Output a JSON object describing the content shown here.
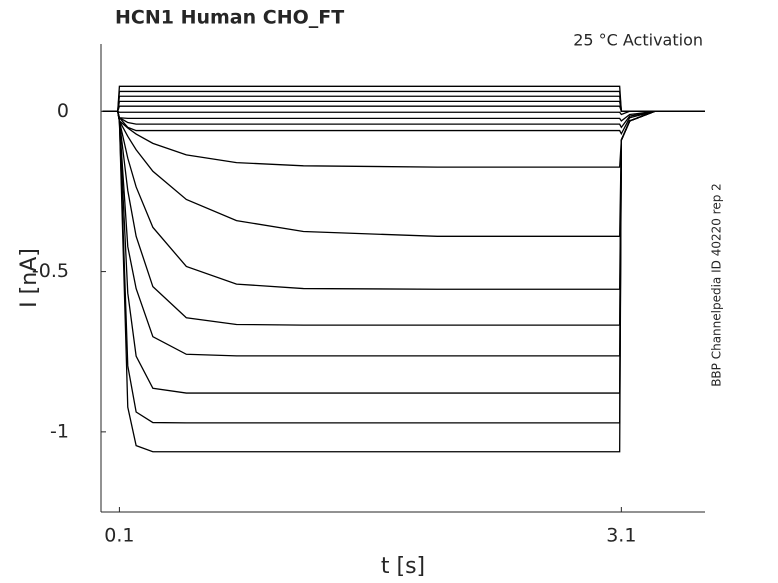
{
  "chart_data": {
    "type": "line",
    "title": "HCN1  Human  CHO_FT",
    "annotation": "25 °C  Activation",
    "side_note": "BBP Channelpedia ID 40220 rep 2",
    "xlabel": "t [s]",
    "ylabel": "I [nA]",
    "xlim": [
      -0.01,
      3.6
    ],
    "ylim": [
      -1.25,
      0.21
    ],
    "xticks": [
      0.1,
      3.1
    ],
    "yticks": [
      0,
      -0.5,
      -1
    ],
    "x": [
      0,
      0.09,
      0.1,
      0.15,
      0.2,
      0.3,
      0.5,
      0.8,
      1.2,
      2,
      3.09,
      3.1,
      3.15,
      3.3,
      3.6
    ],
    "series": [
      {
        "color": "#000000",
        "values": [
          0,
          0,
          0.078,
          0.078,
          0.078,
          0.078,
          0.078,
          0.078,
          0.078,
          0.078,
          0.078,
          0,
          0,
          0,
          0
        ]
      },
      {
        "color": "#000000",
        "values": [
          0,
          0,
          0.062,
          0.062,
          0.062,
          0.062,
          0.062,
          0.062,
          0.062,
          0.062,
          0.062,
          0,
          0,
          0,
          0
        ]
      },
      {
        "color": "#000000",
        "values": [
          0,
          0,
          0.047,
          0.047,
          0.047,
          0.047,
          0.047,
          0.047,
          0.047,
          0.047,
          0.047,
          0,
          0,
          0,
          0
        ]
      },
      {
        "color": "#000000",
        "values": [
          0,
          0,
          0.031,
          0.031,
          0.031,
          0.031,
          0.031,
          0.031,
          0.031,
          0.031,
          0.031,
          0,
          0,
          0,
          0
        ]
      },
      {
        "color": "#000000",
        "values": [
          0,
          0,
          0.016,
          0.016,
          0.016,
          0.016,
          0.016,
          0.016,
          0.016,
          0.016,
          0.016,
          0,
          0,
          0,
          0
        ]
      },
      {
        "color": "#000000",
        "values": [
          0,
          0,
          -0.003,
          -0.003,
          -0.003,
          -0.003,
          -0.003,
          -0.003,
          -0.003,
          -0.003,
          -0.003,
          -0.01,
          0,
          0,
          0
        ]
      },
      {
        "color": "#000000",
        "values": [
          0,
          0,
          -0.02,
          -0.022,
          -0.022,
          -0.022,
          -0.022,
          -0.022,
          -0.022,
          -0.022,
          -0.022,
          -0.03,
          -0.01,
          0,
          0
        ]
      },
      {
        "color": "#000000",
        "values": [
          0,
          0,
          -0.02,
          -0.035,
          -0.04,
          -0.04,
          -0.04,
          -0.04,
          -0.04,
          -0.04,
          -0.04,
          -0.05,
          -0.015,
          0,
          0
        ]
      },
      {
        "color": "#000000",
        "values": [
          0,
          0,
          -0.02,
          -0.05,
          -0.06,
          -0.06,
          -0.06,
          -0.06,
          -0.06,
          -0.06,
          -0.06,
          -0.07,
          -0.02,
          0,
          0
        ]
      },
      {
        "color": "#000000",
        "values": [
          0,
          0,
          -0.03,
          -0.052,
          -0.071,
          -0.1,
          -0.136,
          -0.16,
          -0.17,
          -0.174,
          -0.174,
          -0.09,
          -0.03,
          0,
          0
        ]
      },
      {
        "color": "#000000",
        "values": [
          0,
          0,
          -0.03,
          -0.078,
          -0.12,
          -0.187,
          -0.275,
          -0.341,
          -0.375,
          -0.39,
          -0.39,
          -0.09,
          -0.03,
          0,
          0
        ]
      },
      {
        "color": "#000000",
        "values": [
          0,
          0,
          -0.03,
          -0.146,
          -0.236,
          -0.362,
          -0.484,
          -0.539,
          -0.553,
          -0.555,
          -0.555,
          -0.09,
          -0.03,
          0,
          0
        ]
      },
      {
        "color": "#000000",
        "values": [
          0,
          0,
          -0.03,
          -0.247,
          -0.39,
          -0.547,
          -0.644,
          -0.665,
          -0.667,
          -0.667,
          -0.667,
          -0.09,
          -0.03,
          0,
          0
        ]
      },
      {
        "color": "#000000",
        "values": [
          0,
          0,
          -0.03,
          -0.422,
          -0.553,
          -0.703,
          -0.758,
          -0.763,
          -0.763,
          -0.763,
          -0.763,
          -0.09,
          -0.03,
          0,
          0
        ]
      },
      {
        "color": "#000000",
        "values": [
          0,
          0,
          -0.03,
          -0.567,
          -0.764,
          -0.864,
          -0.879,
          -0.879,
          -0.879,
          -0.879,
          -0.879,
          -0.09,
          -0.03,
          0,
          0
        ]
      },
      {
        "color": "#000000",
        "values": [
          0,
          0,
          -0.03,
          -0.794,
          -0.938,
          -0.971,
          -0.972,
          -0.972,
          -0.972,
          -0.972,
          -0.972,
          -0.09,
          -0.03,
          0,
          0
        ]
      },
      {
        "color": "#000000",
        "values": [
          0,
          0,
          -0.03,
          -0.923,
          -1.043,
          -1.062,
          -1.062,
          -1.062,
          -1.062,
          -1.062,
          -1.062,
          -0.09,
          -0.03,
          0,
          0
        ]
      }
    ]
  }
}
